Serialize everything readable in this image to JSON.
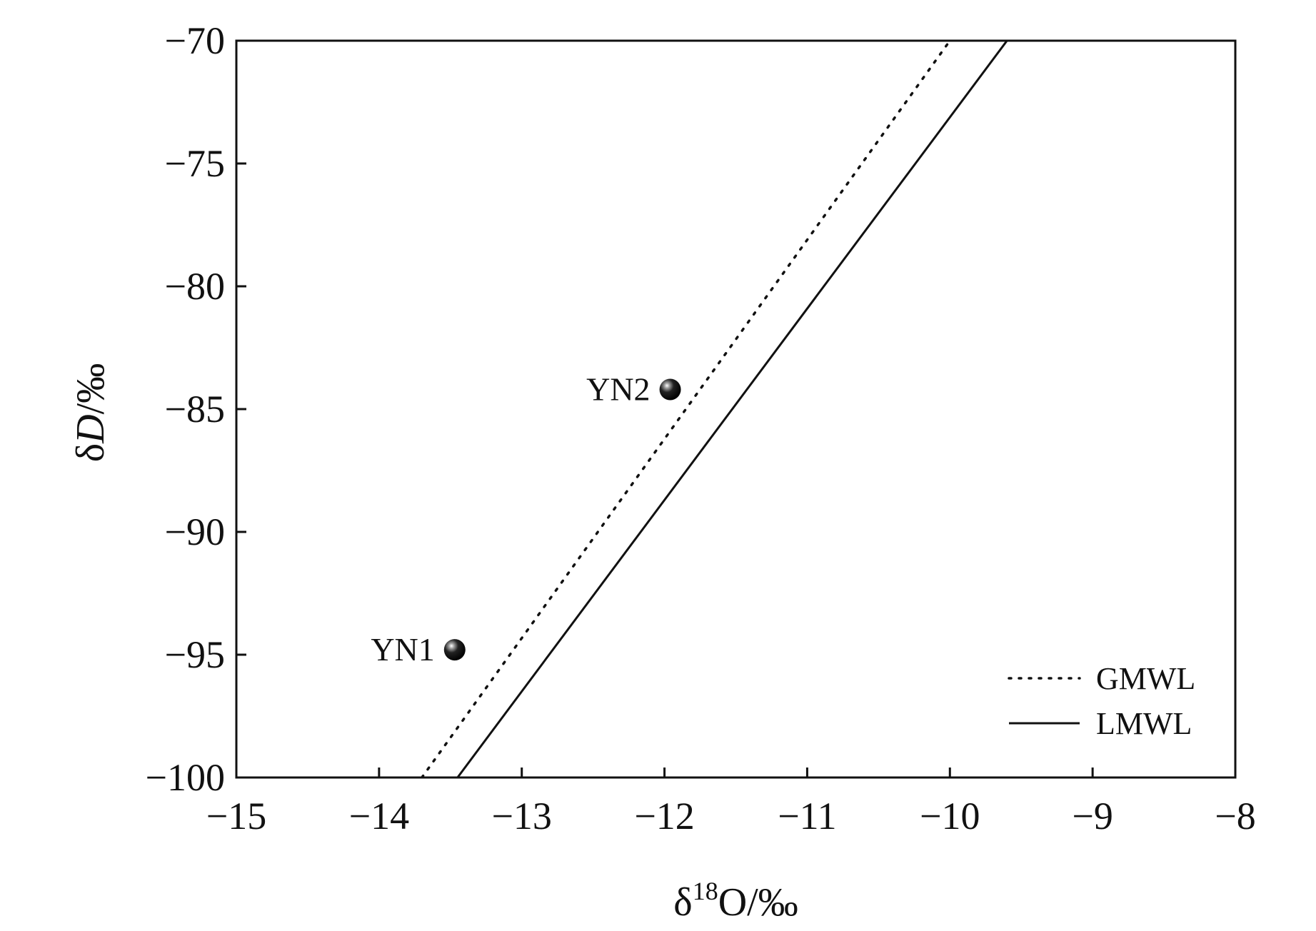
{
  "chart_data": {
    "type": "scatter",
    "title": "",
    "xlabel": {
      "prefix": "δ",
      "superscript": "18",
      "suffix": "O/‰"
    },
    "ylabel": {
      "prefix": "δ",
      "italic": "D",
      "suffix": "/‰"
    },
    "xlim": [
      -15,
      -8
    ],
    "ylim": [
      -100,
      -70
    ],
    "x_ticks": [
      -15,
      -14,
      -13,
      -12,
      -11,
      -10,
      -9,
      -8
    ],
    "y_ticks": [
      -100,
      -95,
      -90,
      -85,
      -80,
      -75,
      -70
    ],
    "x_tick_labels": [
      "−15",
      "−14",
      "−13",
      "−12",
      "−11",
      "−10",
      "−9",
      "−8"
    ],
    "y_tick_labels": [
      "−100",
      "−95",
      "−90",
      "−85",
      "−80",
      "−75",
      "−70"
    ],
    "grid": false,
    "legend_position": "bottom-right",
    "points": [
      {
        "label": "YN1",
        "x": -13.47,
        "y": -94.8
      },
      {
        "label": "YN2",
        "x": -11.96,
        "y": -84.2
      }
    ],
    "lines": [
      {
        "name": "GMWL",
        "style": "dotted",
        "x": [
          -13.7,
          -10.0
        ],
        "y": [
          -100,
          -70
        ]
      },
      {
        "name": "LMWL",
        "style": "solid",
        "x": [
          -13.45,
          -9.6
        ],
        "y": [
          -100,
          -70
        ]
      }
    ],
    "colors": {
      "marks": "#111111",
      "background": "#ffffff"
    }
  }
}
